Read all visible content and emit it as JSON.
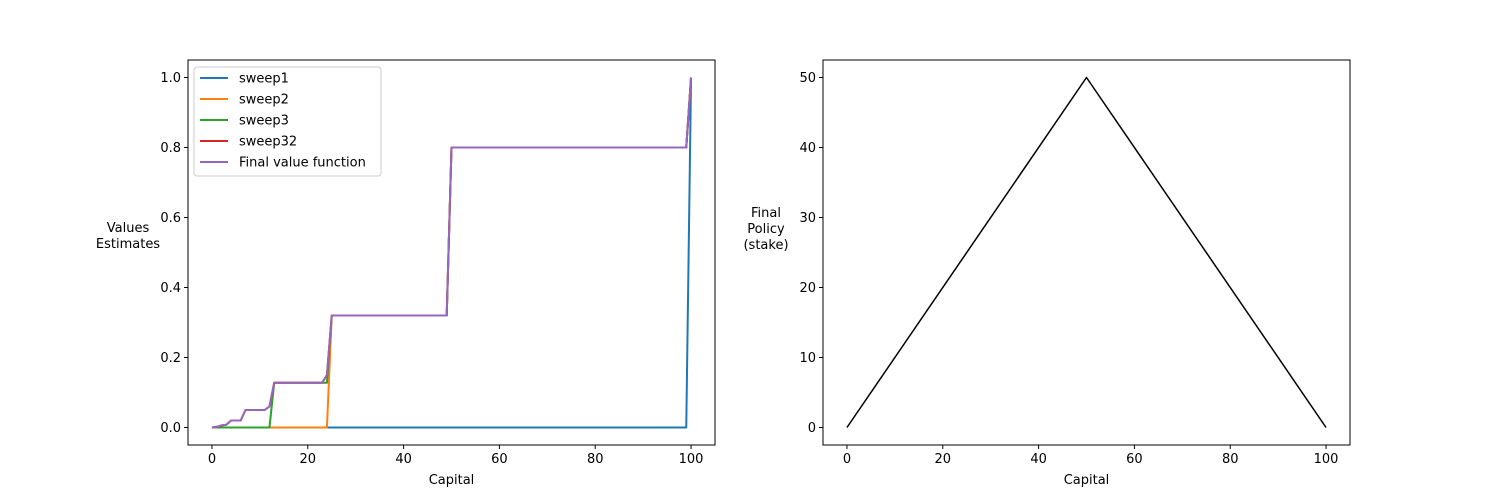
{
  "chart_data": [
    {
      "type": "line",
      "xlabel": "Capital",
      "ylabel": [
        "Values",
        "Estimates"
      ],
      "xlim": [
        -5,
        105
      ],
      "ylim": [
        -0.05,
        1.05
      ],
      "xticks": [
        0,
        20,
        40,
        60,
        80,
        100
      ],
      "yticks": [
        0.0,
        0.2,
        0.4,
        0.6,
        0.8,
        1.0
      ],
      "ytick_labels": [
        "0.0",
        "0.2",
        "0.4",
        "0.6",
        "0.8",
        "1.0"
      ],
      "legend": {
        "placement": "upper-left"
      },
      "series": [
        {
          "name": "sweep1",
          "color": "#1f77b4",
          "points": [
            [
              0,
              0
            ],
            [
              99,
              0
            ],
            [
              100,
              1
            ]
          ]
        },
        {
          "name": "sweep2",
          "color": "#ff7f0e",
          "points": [
            [
              0,
              0
            ],
            [
              24,
              0
            ],
            [
              25,
              0.32
            ],
            [
              49,
              0.32
            ],
            [
              50,
              0.8
            ],
            [
              99,
              0.8
            ],
            [
              100,
              1
            ]
          ]
        },
        {
          "name": "sweep3",
          "color": "#2ca02c",
          "points": [
            [
              0,
              0
            ],
            [
              12,
              0
            ],
            [
              13,
              0.128
            ],
            [
              24,
              0.128
            ],
            [
              25,
              0.32
            ],
            [
              49,
              0.32
            ],
            [
              50,
              0.8
            ],
            [
              99,
              0.8
            ],
            [
              100,
              1
            ]
          ]
        },
        {
          "name": "sweep32",
          "color": "#d62728",
          "points": [
            [
              0,
              0
            ],
            [
              1,
              0.002
            ],
            [
              2,
              0.006
            ],
            [
              3,
              0.008
            ],
            [
              4,
              0.02
            ],
            [
              6,
              0.02
            ],
            [
              7,
              0.05
            ],
            [
              11,
              0.05
            ],
            [
              12,
              0.06
            ],
            [
              13,
              0.128
            ],
            [
              23,
              0.128
            ],
            [
              24,
              0.15
            ],
            [
              25,
              0.32
            ],
            [
              49,
              0.32
            ],
            [
              50,
              0.8
            ],
            [
              99,
              0.8
            ],
            [
              100,
              1
            ]
          ]
        },
        {
          "name": "Final value function",
          "color": "#9467bd",
          "points": [
            [
              0,
              0
            ],
            [
              1,
              0.002
            ],
            [
              2,
              0.006
            ],
            [
              3,
              0.008
            ],
            [
              4,
              0.02
            ],
            [
              6,
              0.02
            ],
            [
              7,
              0.05
            ],
            [
              11,
              0.05
            ],
            [
              12,
              0.06
            ],
            [
              13,
              0.128
            ],
            [
              23,
              0.128
            ],
            [
              24,
              0.15
            ],
            [
              25,
              0.32
            ],
            [
              49,
              0.32
            ],
            [
              50,
              0.8
            ],
            [
              99,
              0.8
            ],
            [
              100,
              1
            ]
          ]
        }
      ]
    },
    {
      "type": "line",
      "xlabel": "Capital",
      "ylabel": [
        "Final",
        "Policy",
        "(stake)"
      ],
      "xlim": [
        -5,
        105
      ],
      "ylim": [
        -2.5,
        52.5
      ],
      "xticks": [
        0,
        20,
        40,
        60,
        80,
        100
      ],
      "yticks": [
        0,
        10,
        20,
        30,
        40,
        50
      ],
      "ytick_labels": [
        "0",
        "10",
        "20",
        "30",
        "40",
        "50"
      ],
      "series": [
        {
          "color": "#000000",
          "points": [
            [
              0,
              0
            ],
            [
              50,
              50
            ],
            [
              100,
              0
            ]
          ]
        }
      ]
    }
  ]
}
